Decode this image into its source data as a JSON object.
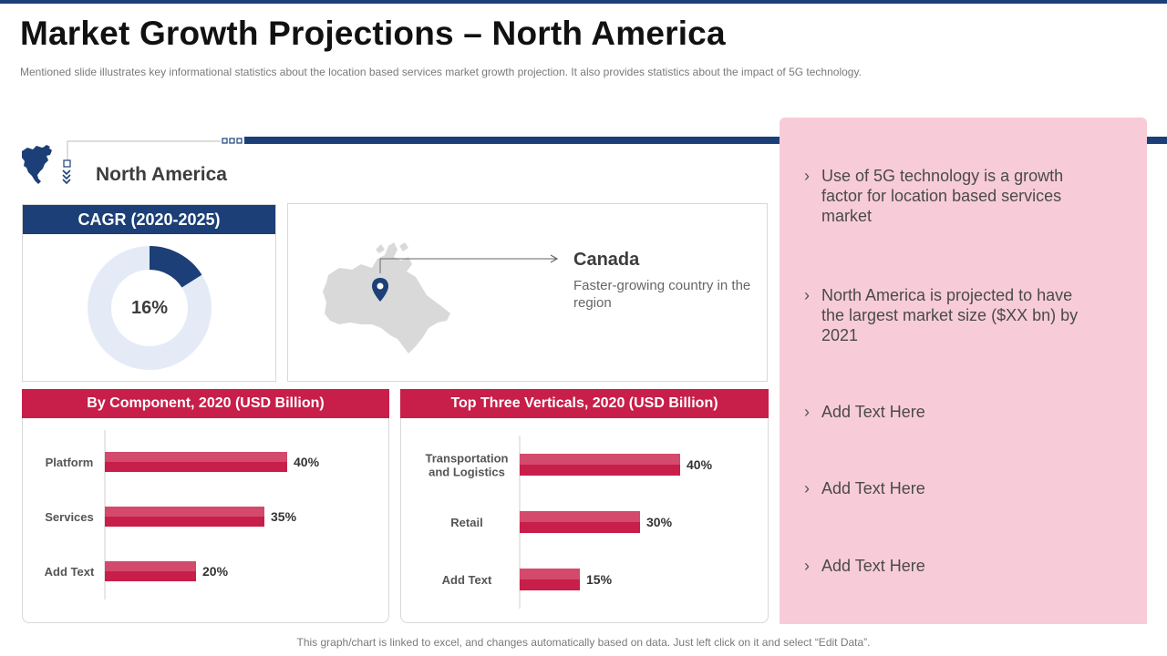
{
  "page": {
    "title": "Market Growth Projections – North America",
    "subtitle": "Mentioned slide illustrates key informational statistics about the location based services market growth projection. It also provides  statistics about the impact of 5G technology.",
    "footnote": "This graph/chart is linked to excel, and changes automatically based on data. Just left click on it and select “Edit Data”."
  },
  "region": {
    "label": "North America",
    "icon": "north-america-map-icon"
  },
  "colors": {
    "navy": "#1c3f77",
    "crimson": "#c81e4a",
    "bar_light": "#d34a6c",
    "pink_panel": "#f7ccd8",
    "donut_track": "#e4ebf7"
  },
  "cagr": {
    "heading": "CAGR (2020-2025)",
    "value_label": "16%"
  },
  "canada": {
    "name": "Canada",
    "description": "Faster-growing country in the region",
    "icon": "location-pin-icon"
  },
  "bullets": [
    "Use of 5G technology is a growth factor for location based services market",
    "North America is projected to have the largest market size ($XX bn) by 2021",
    "Add Text Here",
    "Add Text Here",
    "Add Text Here"
  ],
  "chart_data": [
    {
      "type": "pie",
      "title": "CAGR (2020-2025)",
      "categories": [
        "CAGR",
        "Remaining"
      ],
      "values": [
        16,
        84
      ],
      "labels": [
        "16%"
      ]
    },
    {
      "type": "bar",
      "orientation": "horizontal",
      "title": "By Component, 2020 (USD Billion)",
      "categories": [
        "Platform",
        "Services",
        "Add Text"
      ],
      "values": [
        40,
        35,
        20
      ],
      "labels": [
        "40%",
        "35%",
        "20%"
      ],
      "xlim": [
        0,
        100
      ]
    },
    {
      "type": "bar",
      "orientation": "horizontal",
      "title": "Top Three Verticals,  2020 (USD Billion)",
      "categories": [
        "Transportation and Logistics",
        "Retail",
        "Add Text"
      ],
      "values": [
        40,
        30,
        15
      ],
      "labels": [
        "40%",
        "30%",
        "15%"
      ],
      "xlim": [
        0,
        100
      ]
    }
  ]
}
